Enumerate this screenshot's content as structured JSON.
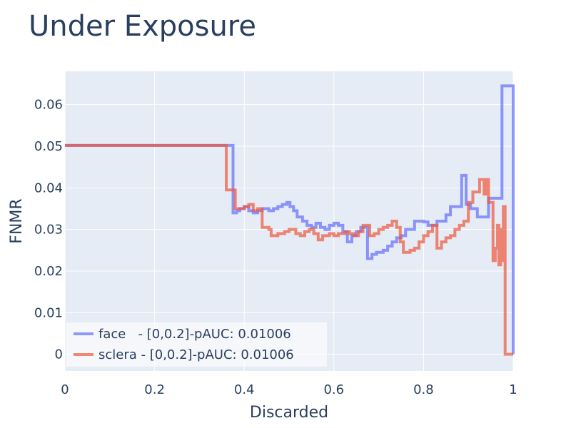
{
  "chart_data": {
    "type": "line",
    "line_shape": "step",
    "title": "Under Exposure",
    "xlabel": "Discarded",
    "ylabel": "FNMR",
    "xlim": [
      0,
      1
    ],
    "ylim": [
      -0.004,
      0.068
    ],
    "x_ticks": [
      0,
      0.2,
      0.4,
      0.6,
      0.8,
      1
    ],
    "x_tick_labels": [
      "0",
      "0.2",
      "0.4",
      "0.6",
      "0.8",
      "1"
    ],
    "y_ticks": [
      0,
      0.01,
      0.02,
      0.03,
      0.04,
      0.05,
      0.06
    ],
    "y_tick_labels": [
      "0",
      "0.01",
      "0.02",
      "0.03",
      "0.04",
      "0.05",
      "0.06"
    ],
    "grid": true,
    "plot_background": "#e5ecf6",
    "legend_position": "bottom-left",
    "series": [
      {
        "name": "face   - [0,0.2]-pAUC: 0.01006",
        "color": "#636efa",
        "opacity": 0.7,
        "points": [
          [
            0,
            0.0502
          ],
          [
            0.375,
            0.0502
          ],
          [
            0.375,
            0.034
          ],
          [
            0.383,
            0.034
          ],
          [
            0.383,
            0.0345
          ],
          [
            0.39,
            0.0345
          ],
          [
            0.39,
            0.035
          ],
          [
            0.4,
            0.035
          ],
          [
            0.4,
            0.0355
          ],
          [
            0.41,
            0.0355
          ],
          [
            0.41,
            0.0345
          ],
          [
            0.42,
            0.0345
          ],
          [
            0.42,
            0.034
          ],
          [
            0.43,
            0.034
          ],
          [
            0.43,
            0.0345
          ],
          [
            0.44,
            0.0345
          ],
          [
            0.44,
            0.035
          ],
          [
            0.455,
            0.035
          ],
          [
            0.455,
            0.0345
          ],
          [
            0.465,
            0.0345
          ],
          [
            0.465,
            0.035
          ],
          [
            0.475,
            0.035
          ],
          [
            0.475,
            0.0355
          ],
          [
            0.485,
            0.0355
          ],
          [
            0.485,
            0.036
          ],
          [
            0.495,
            0.036
          ],
          [
            0.495,
            0.0365
          ],
          [
            0.502,
            0.0365
          ],
          [
            0.502,
            0.0355
          ],
          [
            0.51,
            0.0355
          ],
          [
            0.51,
            0.0345
          ],
          [
            0.518,
            0.0345
          ],
          [
            0.518,
            0.033
          ],
          [
            0.53,
            0.033
          ],
          [
            0.53,
            0.032
          ],
          [
            0.54,
            0.032
          ],
          [
            0.54,
            0.031
          ],
          [
            0.55,
            0.031
          ],
          [
            0.55,
            0.0305
          ],
          [
            0.56,
            0.0305
          ],
          [
            0.56,
            0.0315
          ],
          [
            0.57,
            0.0315
          ],
          [
            0.57,
            0.0305
          ],
          [
            0.58,
            0.0305
          ],
          [
            0.58,
            0.03
          ],
          [
            0.59,
            0.03
          ],
          [
            0.59,
            0.031
          ],
          [
            0.6,
            0.031
          ],
          [
            0.6,
            0.0315
          ],
          [
            0.61,
            0.0315
          ],
          [
            0.61,
            0.031
          ],
          [
            0.62,
            0.031
          ],
          [
            0.62,
            0.0295
          ],
          [
            0.63,
            0.0295
          ],
          [
            0.63,
            0.027
          ],
          [
            0.64,
            0.027
          ],
          [
            0.64,
            0.0285
          ],
          [
            0.65,
            0.0285
          ],
          [
            0.65,
            0.0295
          ],
          [
            0.66,
            0.0295
          ],
          [
            0.66,
            0.0305
          ],
          [
            0.675,
            0.0305
          ],
          [
            0.675,
            0.023
          ],
          [
            0.685,
            0.023
          ],
          [
            0.685,
            0.024
          ],
          [
            0.695,
            0.024
          ],
          [
            0.695,
            0.0245
          ],
          [
            0.71,
            0.0245
          ],
          [
            0.71,
            0.025
          ],
          [
            0.72,
            0.025
          ],
          [
            0.72,
            0.026
          ],
          [
            0.73,
            0.026
          ],
          [
            0.73,
            0.027
          ],
          [
            0.74,
            0.027
          ],
          [
            0.74,
            0.028
          ],
          [
            0.75,
            0.028
          ],
          [
            0.75,
            0.0285
          ],
          [
            0.76,
            0.0285
          ],
          [
            0.76,
            0.03
          ],
          [
            0.78,
            0.03
          ],
          [
            0.78,
            0.032
          ],
          [
            0.8,
            0.032
          ],
          [
            0.8,
            0.0318
          ],
          [
            0.81,
            0.0318
          ],
          [
            0.81,
            0.031
          ],
          [
            0.83,
            0.031
          ],
          [
            0.83,
            0.032
          ],
          [
            0.85,
            0.032
          ],
          [
            0.85,
            0.0335
          ],
          [
            0.86,
            0.0335
          ],
          [
            0.86,
            0.0355
          ],
          [
            0.885,
            0.0355
          ],
          [
            0.885,
            0.043
          ],
          [
            0.895,
            0.043
          ],
          [
            0.895,
            0.036
          ],
          [
            0.905,
            0.036
          ],
          [
            0.905,
            0.035
          ],
          [
            0.92,
            0.035
          ],
          [
            0.92,
            0.033
          ],
          [
            0.945,
            0.033
          ],
          [
            0.945,
            0.0375
          ],
          [
            0.975,
            0.0375
          ],
          [
            0.975,
            0.0645
          ],
          [
            1.0,
            0.0645
          ],
          [
            1.0,
            0.0
          ]
        ]
      },
      {
        "name": "sclera - [0,0.2]-pAUC: 0.01006",
        "color": "#ef553b",
        "opacity": 0.7,
        "points": [
          [
            0,
            0.0502
          ],
          [
            0.36,
            0.0502
          ],
          [
            0.36,
            0.0395
          ],
          [
            0.38,
            0.0395
          ],
          [
            0.38,
            0.035
          ],
          [
            0.4,
            0.035
          ],
          [
            0.4,
            0.0355
          ],
          [
            0.41,
            0.0355
          ],
          [
            0.41,
            0.036
          ],
          [
            0.42,
            0.036
          ],
          [
            0.42,
            0.0345
          ],
          [
            0.43,
            0.0345
          ],
          [
            0.43,
            0.035
          ],
          [
            0.44,
            0.035
          ],
          [
            0.44,
            0.0305
          ],
          [
            0.455,
            0.0305
          ],
          [
            0.455,
            0.03
          ],
          [
            0.46,
            0.03
          ],
          [
            0.46,
            0.0285
          ],
          [
            0.475,
            0.0285
          ],
          [
            0.475,
            0.029
          ],
          [
            0.49,
            0.029
          ],
          [
            0.49,
            0.0295
          ],
          [
            0.5,
            0.0295
          ],
          [
            0.5,
            0.03
          ],
          [
            0.515,
            0.03
          ],
          [
            0.515,
            0.029
          ],
          [
            0.525,
            0.029
          ],
          [
            0.525,
            0.0285
          ],
          [
            0.535,
            0.0285
          ],
          [
            0.535,
            0.0295
          ],
          [
            0.545,
            0.0295
          ],
          [
            0.545,
            0.03
          ],
          [
            0.555,
            0.03
          ],
          [
            0.555,
            0.029
          ],
          [
            0.565,
            0.029
          ],
          [
            0.565,
            0.0275
          ],
          [
            0.575,
            0.0275
          ],
          [
            0.575,
            0.0285
          ],
          [
            0.59,
            0.0285
          ],
          [
            0.59,
            0.029
          ],
          [
            0.6,
            0.029
          ],
          [
            0.6,
            0.0285
          ],
          [
            0.61,
            0.0285
          ],
          [
            0.61,
            0.029
          ],
          [
            0.625,
            0.029
          ],
          [
            0.625,
            0.0295
          ],
          [
            0.635,
            0.0295
          ],
          [
            0.635,
            0.029
          ],
          [
            0.645,
            0.029
          ],
          [
            0.645,
            0.0285
          ],
          [
            0.655,
            0.0285
          ],
          [
            0.655,
            0.0295
          ],
          [
            0.665,
            0.0295
          ],
          [
            0.665,
            0.031
          ],
          [
            0.68,
            0.031
          ],
          [
            0.68,
            0.0285
          ],
          [
            0.69,
            0.0285
          ],
          [
            0.69,
            0.029
          ],
          [
            0.7,
            0.029
          ],
          [
            0.7,
            0.03
          ],
          [
            0.71,
            0.03
          ],
          [
            0.71,
            0.0305
          ],
          [
            0.72,
            0.0305
          ],
          [
            0.72,
            0.031
          ],
          [
            0.73,
            0.031
          ],
          [
            0.73,
            0.032
          ],
          [
            0.74,
            0.032
          ],
          [
            0.74,
            0.0305
          ],
          [
            0.748,
            0.0305
          ],
          [
            0.748,
            0.027
          ],
          [
            0.755,
            0.027
          ],
          [
            0.755,
            0.0245
          ],
          [
            0.77,
            0.0245
          ],
          [
            0.77,
            0.025
          ],
          [
            0.78,
            0.025
          ],
          [
            0.78,
            0.0255
          ],
          [
            0.79,
            0.0255
          ],
          [
            0.79,
            0.027
          ],
          [
            0.8,
            0.027
          ],
          [
            0.8,
            0.0285
          ],
          [
            0.81,
            0.0285
          ],
          [
            0.81,
            0.0295
          ],
          [
            0.82,
            0.0295
          ],
          [
            0.82,
            0.031
          ],
          [
            0.83,
            0.031
          ],
          [
            0.83,
            0.0255
          ],
          [
            0.84,
            0.0255
          ],
          [
            0.84,
            0.027
          ],
          [
            0.85,
            0.027
          ],
          [
            0.85,
            0.028
          ],
          [
            0.86,
            0.028
          ],
          [
            0.86,
            0.0285
          ],
          [
            0.87,
            0.0285
          ],
          [
            0.87,
            0.03
          ],
          [
            0.88,
            0.03
          ],
          [
            0.88,
            0.031
          ],
          [
            0.89,
            0.031
          ],
          [
            0.89,
            0.032
          ],
          [
            0.9,
            0.032
          ],
          [
            0.9,
            0.0365
          ],
          [
            0.91,
            0.0365
          ],
          [
            0.91,
            0.039
          ],
          [
            0.925,
            0.039
          ],
          [
            0.925,
            0.042
          ],
          [
            0.935,
            0.042
          ],
          [
            0.935,
            0.0385
          ],
          [
            0.94,
            0.0385
          ],
          [
            0.94,
            0.042
          ],
          [
            0.945,
            0.042
          ],
          [
            0.945,
            0.0365
          ],
          [
            0.955,
            0.0365
          ],
          [
            0.955,
            0.0225
          ],
          [
            0.96,
            0.0225
          ],
          [
            0.96,
            0.0255
          ],
          [
            0.965,
            0.0255
          ],
          [
            0.965,
            0.031
          ],
          [
            0.968,
            0.031
          ],
          [
            0.968,
            0.0215
          ],
          [
            0.972,
            0.0215
          ],
          [
            0.972,
            0.03
          ],
          [
            0.975,
            0.03
          ],
          [
            0.975,
            0.0225
          ],
          [
            0.978,
            0.0225
          ],
          [
            0.978,
            0.0355
          ],
          [
            0.982,
            0.0355
          ],
          [
            0.982,
            0.0
          ],
          [
            1.0,
            0.0
          ]
        ]
      }
    ]
  }
}
